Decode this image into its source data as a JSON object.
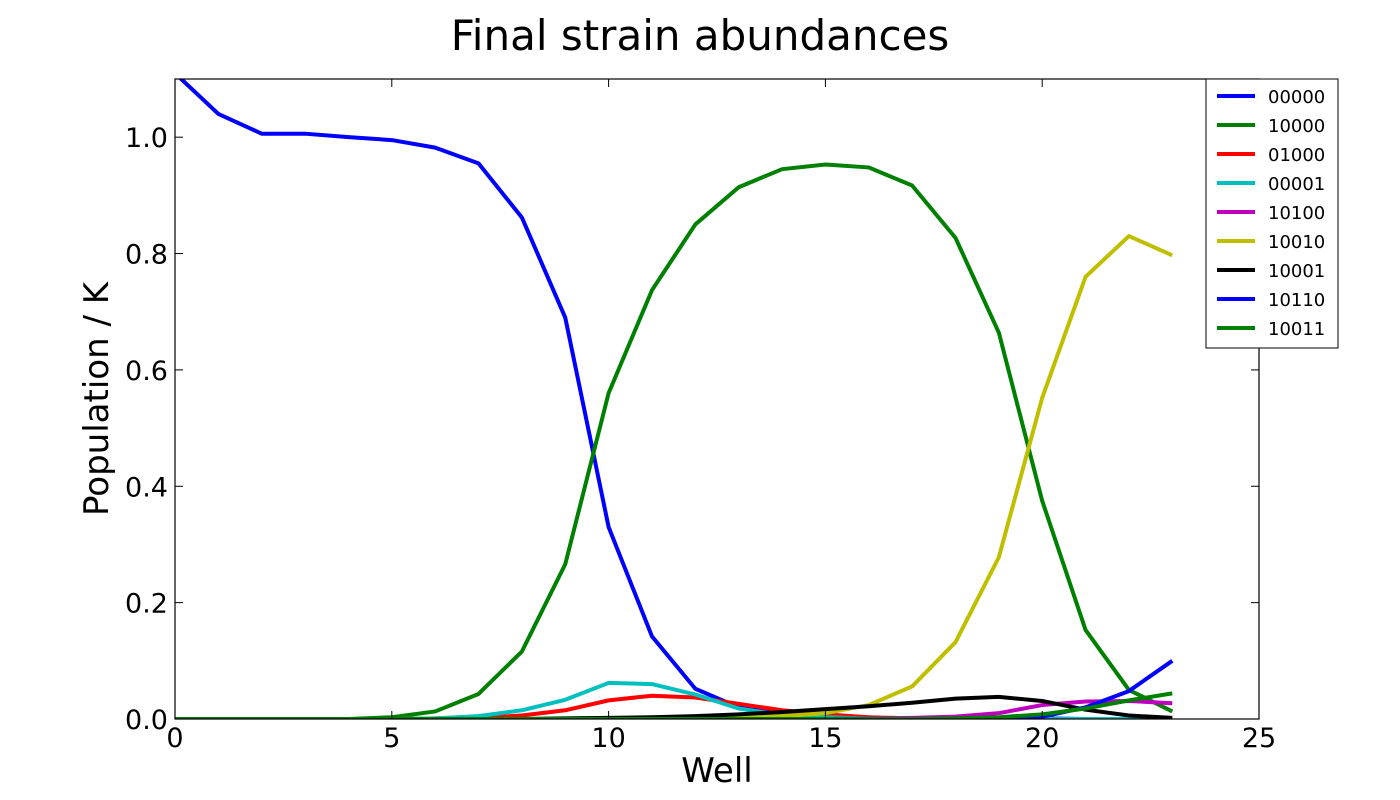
{
  "chart_data": {
    "type": "line",
    "title": "Final strain abundances",
    "xlabel": "Well",
    "ylabel": "Population / K",
    "xlim": [
      0,
      25
    ],
    "ylim": [
      0,
      1.1
    ],
    "xticks": [
      "0",
      "5",
      "10",
      "15",
      "20",
      "25"
    ],
    "yticks": [
      "0.0",
      "0.2",
      "0.4",
      "0.6",
      "0.8",
      "1.0"
    ],
    "xtick_values": [
      0,
      5,
      10,
      15,
      20,
      25
    ],
    "ytick_values": [
      0,
      0.2,
      0.4,
      0.6,
      0.8,
      1.0
    ],
    "grid": false,
    "legend_position": "top-right",
    "x": [
      0,
      1,
      2,
      3,
      4,
      5,
      6,
      7,
      8,
      9,
      10,
      11,
      12,
      13,
      14,
      15,
      16,
      17,
      18,
      19,
      20,
      21,
      22,
      23
    ],
    "series": [
      {
        "name": "00000",
        "color": "#0000ff",
        "values": [
          1.11,
          1.04,
          1.006,
          1.006,
          1.0,
          0.995,
          0.982,
          0.955,
          0.862,
          0.69,
          0.33,
          0.142,
          0.052,
          0.02,
          0.008,
          0.004,
          0.002,
          0.001,
          0.001,
          0.001,
          0.001,
          0.0,
          0.0,
          0.0
        ]
      },
      {
        "name": "10000",
        "color": "#008000",
        "values": [
          0.0,
          0.0,
          0.0,
          0.0,
          0.0,
          0.003,
          0.013,
          0.043,
          0.116,
          0.266,
          0.56,
          0.737,
          0.85,
          0.914,
          0.945,
          0.953,
          0.948,
          0.917,
          0.827,
          0.664,
          0.375,
          0.153,
          0.05,
          0.013
        ]
      },
      {
        "name": "01000",
        "color": "#ff0000",
        "values": [
          0.0,
          0.0,
          0.0,
          0.0,
          0.0,
          0.0,
          0.001,
          0.002,
          0.006,
          0.015,
          0.032,
          0.04,
          0.037,
          0.026,
          0.015,
          0.008,
          0.003,
          0.001,
          0.0,
          0.0,
          0.0,
          0.0,
          0.0,
          0.0
        ]
      },
      {
        "name": "00001",
        "color": "#00bfbf",
        "values": [
          0.0,
          0.0,
          0.0,
          0.0,
          0.0,
          0.0,
          0.001,
          0.005,
          0.015,
          0.033,
          0.062,
          0.06,
          0.042,
          0.018,
          0.007,
          0.003,
          0.001,
          0.0,
          0.0,
          0.0,
          0.0,
          0.0,
          0.0,
          0.0
        ]
      },
      {
        "name": "10100",
        "color": "#bf00bf",
        "values": [
          0.0,
          0.0,
          0.0,
          0.0,
          0.0,
          0.0,
          0.0,
          0.0,
          0.0,
          0.0,
          0.0,
          0.0,
          0.0,
          0.0,
          0.0,
          0.0,
          0.001,
          0.002,
          0.004,
          0.01,
          0.024,
          0.03,
          0.031,
          0.027
        ]
      },
      {
        "name": "10010",
        "color": "#bfbf00",
        "values": [
          0.0,
          0.0,
          0.0,
          0.0,
          0.0,
          0.0,
          0.0,
          0.0,
          0.0,
          0.0,
          0.0,
          0.0,
          0.001,
          0.002,
          0.005,
          0.01,
          0.024,
          0.056,
          0.132,
          0.278,
          0.552,
          0.76,
          0.83,
          0.797
        ]
      },
      {
        "name": "10001",
        "color": "#000000",
        "values": [
          0.0,
          0.0,
          0.0,
          0.0,
          0.0,
          0.0,
          0.0,
          0.0,
          0.0,
          0.001,
          0.002,
          0.003,
          0.005,
          0.008,
          0.012,
          0.017,
          0.022,
          0.028,
          0.035,
          0.038,
          0.031,
          0.016,
          0.006,
          0.002
        ]
      },
      {
        "name": "10110",
        "color": "#0000ff",
        "values": [
          0.0,
          0.0,
          0.0,
          0.0,
          0.0,
          0.0,
          0.0,
          0.0,
          0.0,
          0.0,
          0.0,
          0.0,
          0.0,
          0.0,
          0.0,
          0.0,
          0.0,
          0.0,
          0.0,
          0.001,
          0.004,
          0.02,
          0.048,
          0.1
        ]
      },
      {
        "name": "10011",
        "color": "#008000",
        "values": [
          0.0,
          0.0,
          0.0,
          0.0,
          0.0,
          0.0,
          0.0,
          0.0,
          0.0,
          0.0,
          0.0,
          0.0,
          0.0,
          0.0,
          0.0,
          0.0,
          0.0,
          0.0,
          0.001,
          0.003,
          0.008,
          0.018,
          0.032,
          0.044
        ]
      }
    ]
  }
}
